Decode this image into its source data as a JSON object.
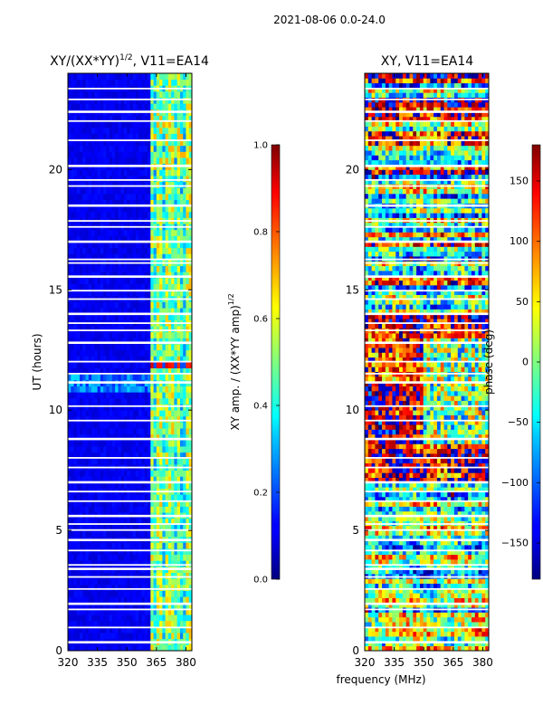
{
  "figure": {
    "suptitle": "2021-08-06 0.0-24.0",
    "shared_xlabel": "frequency (MHz)"
  },
  "chart_data": [
    {
      "type": "heatmap",
      "title_main": "XY/(XX*YY)",
      "title_sup": "1/2",
      "title_tail": ", V11=EA14",
      "xlabel": "frequency (MHz)",
      "ylabel": "UT (hours)",
      "x_ticks": [
        320,
        335,
        350,
        365,
        380
      ],
      "xlim": [
        320,
        383
      ],
      "y_ticks": [
        0,
        5,
        10,
        15,
        20
      ],
      "ylim": [
        0,
        24
      ],
      "colorbar": {
        "label_main": "XY amp. / (XX*YY amp)",
        "label_sup": "1/2",
        "ticks": [
          "0.0",
          "0.2",
          "0.4",
          "0.6",
          "0.8",
          "1.0"
        ],
        "range": [
          0.0,
          1.0
        ],
        "colormap": "jet"
      },
      "gaps_ut": [
        0.35,
        0.95,
        1.7,
        1.95,
        2.55,
        3.05,
        3.4,
        3.55,
        4.15,
        4.6,
        5.0,
        5.25,
        5.6,
        6.2,
        6.6,
        7.0,
        7.6,
        8.0,
        8.8,
        9.55,
        10.15,
        11.15,
        11.5,
        12.0,
        12.8,
        13.3,
        13.6,
        14.0,
        14.6,
        14.95,
        15.55,
        16.1,
        16.25,
        17.0,
        17.6,
        17.85,
        18.5,
        19.3,
        19.55,
        20.15,
        21.2,
        22.0,
        22.4,
        22.9,
        23.35
      ],
      "hot_band_ut": [
        10.4,
        10.6,
        11.7,
        12.0
      ],
      "rfi_channels_mhz": [
        364.5,
        368.5,
        374.5,
        378.5
      ]
    },
    {
      "type": "heatmap",
      "title": "XY, V11=EA14",
      "xlabel": "frequency (MHz)",
      "x_ticks": [
        320,
        335,
        350,
        365,
        380
      ],
      "xlim": [
        320,
        383
      ],
      "y_ticks": [
        0,
        5,
        10,
        15,
        20
      ],
      "ylim": [
        0,
        24
      ],
      "colorbar": {
        "label": "phase (deg)",
        "ticks": [
          "150",
          "100",
          "50",
          "0",
          "−50",
          "−100",
          "−150"
        ],
        "range": [
          -180,
          180
        ],
        "colormap": "jet"
      },
      "gaps_ut": [
        0.35,
        0.95,
        1.7,
        1.95,
        2.55,
        3.05,
        3.4,
        3.55,
        4.15,
        4.6,
        5.0,
        5.25,
        5.6,
        6.2,
        6.6,
        7.0,
        7.6,
        8.0,
        8.8,
        9.55,
        10.15,
        11.15,
        11.5,
        12.0,
        12.8,
        13.3,
        13.6,
        14.0,
        14.6,
        14.95,
        15.55,
        16.1,
        16.25,
        17.0,
        17.6,
        17.85,
        18.5,
        19.3,
        19.55,
        20.15,
        21.2,
        22.0,
        22.4,
        22.9,
        23.35
      ]
    }
  ]
}
